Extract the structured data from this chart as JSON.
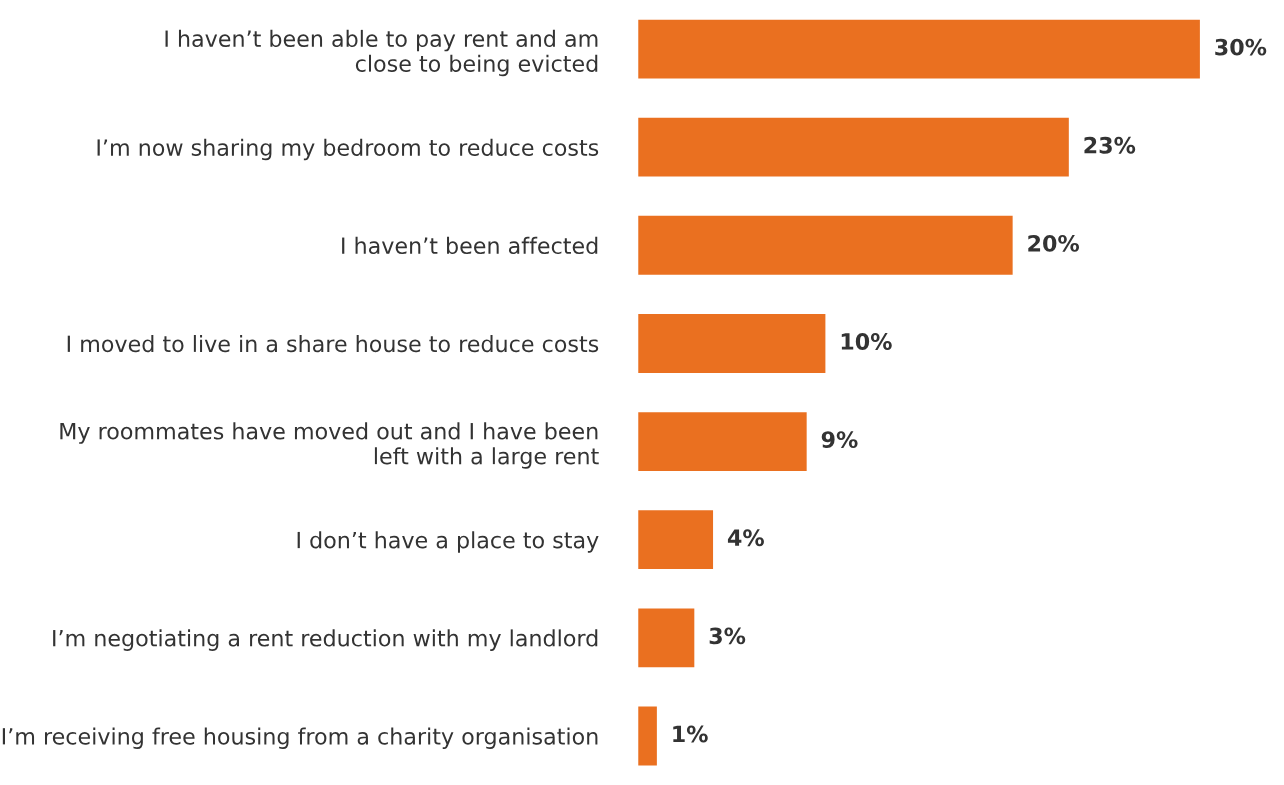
{
  "chart_data": {
    "type": "bar",
    "orientation": "horizontal",
    "categories": [
      "I haven’t been able to pay rent and am\nclose to being evicted",
      "I’m now sharing my bedroom to reduce costs",
      "I haven’t been affected",
      "I moved to live in a share house to reduce costs",
      "My roommates have moved out and I have been\nleft with a large rent",
      "I don’t have a place to stay",
      "I’m negotiating a rent reduction with my landlord",
      "I’m receiving free housing from a charity organisation"
    ],
    "values": [
      30,
      23,
      20,
      10,
      9,
      4,
      3,
      1
    ],
    "value_labels": [
      "30%",
      "23%",
      "20%",
      "10%",
      "9%",
      "4%",
      "3%",
      "1%"
    ],
    "color": "#ea7020",
    "tick_labels": "y",
    "grid": false,
    "legend": false
  }
}
